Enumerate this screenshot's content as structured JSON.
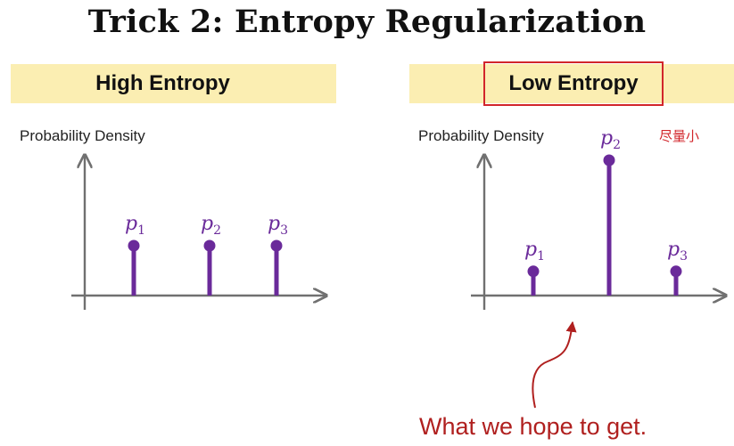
{
  "title": "Trick 2: Entropy Regularization",
  "panels": [
    {
      "banner": "High Entropy",
      "ylabel": "Probability Density",
      "stems": [
        {
          "label": "p",
          "sub": "1",
          "value": 0.35
        },
        {
          "label": "p",
          "sub": "2",
          "value": 0.35
        },
        {
          "label": "p",
          "sub": "3",
          "value": 0.35
        }
      ]
    },
    {
      "banner": "Low Entropy",
      "ylabel": "Probability Density",
      "annotation": "尽量小",
      "stems": [
        {
          "label": "p",
          "sub": "1",
          "value": 0.17
        },
        {
          "label": "p",
          "sub": "2",
          "value": 0.95
        },
        {
          "label": "p",
          "sub": "3",
          "value": 0.17
        }
      ]
    }
  ],
  "caption": "What we hope to get.",
  "colors": {
    "stem": "#6a2a9a",
    "axis": "#707070",
    "banner": "#fbeeb2",
    "highlight": "#d2262b",
    "caption": "#b0201f"
  }
}
